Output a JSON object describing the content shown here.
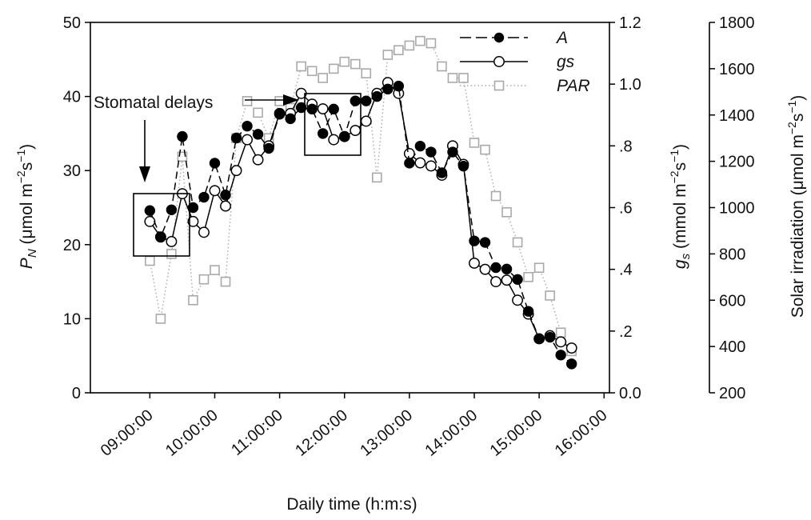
{
  "chart_data": {
    "type": "line",
    "xlabel": "Daily time (h:m:s)",
    "x_ticks": [
      "09:00:00",
      "10:00:00",
      "11:00:00",
      "12:00:00",
      "13:00:00",
      "14:00:00",
      "15:00:00",
      "16:00:00"
    ],
    "xlim": [
      "08:05:00",
      "16:05:00"
    ],
    "axes": {
      "left": {
        "label_main": "P",
        "label_sub": "N",
        "label_rest": " (μmol m",
        "label_sup1": "−2",
        "label_mid": "s",
        "label_sup2": "−1",
        "label_end": ")",
        "ylim": [
          0,
          50
        ],
        "ticks": [
          "0",
          "10",
          "20",
          "30",
          "40",
          "50"
        ]
      },
      "right1": {
        "label_main": "g",
        "label_sub": "s",
        "label_rest": " (mmol m",
        "label_sup1": "−2",
        "label_mid": "s",
        "label_sup2": "−1",
        "label_end": ")",
        "ylim": [
          0.0,
          1.2
        ],
        "ticks": [
          "0.0",
          ".2",
          ".4",
          ".6",
          ".8",
          "1.0",
          "1.2"
        ]
      },
      "right2": {
        "label_main": "Solar irradiation (μmol m",
        "label_sup1": "−2",
        "label_mid": "s",
        "label_sup2": "−1",
        "label_end": ")",
        "ylim": [
          200,
          1800
        ],
        "ticks": [
          "200",
          "400",
          "600",
          "800",
          "1000",
          "1200",
          "1400",
          "1600",
          "1800"
        ]
      }
    },
    "legend": {
      "position": "top-right",
      "entries": [
        "A",
        "gs",
        "PAR"
      ]
    },
    "annotation": {
      "text": "Stomatal delays"
    },
    "series": [
      {
        "name": "A",
        "axis": "left",
        "marker": "filled-circle",
        "line": "dashed",
        "color": "#000000",
        "points": [
          [
            "09:00",
            24.6
          ],
          [
            "09:10",
            21.0
          ],
          [
            "09:20",
            24.7
          ],
          [
            "09:30",
            34.6
          ],
          [
            "09:40",
            25.0
          ],
          [
            "09:50",
            26.4
          ],
          [
            "10:00",
            31.0
          ],
          [
            "10:10",
            26.7
          ],
          [
            "10:20",
            34.4
          ],
          [
            "10:30",
            36.0
          ],
          [
            "10:40",
            34.9
          ],
          [
            "10:50",
            33.0
          ],
          [
            "11:00",
            37.6
          ],
          [
            "11:10",
            37.0
          ],
          [
            "11:20",
            38.5
          ],
          [
            "11:30",
            38.3
          ],
          [
            "11:40",
            35.0
          ],
          [
            "11:50",
            38.3
          ],
          [
            "12:00",
            34.6
          ],
          [
            "12:10",
            39.4
          ],
          [
            "12:20",
            39.4
          ],
          [
            "12:30",
            40.0
          ],
          [
            "12:40",
            41.0
          ],
          [
            "12:50",
            41.4
          ],
          [
            "13:00",
            31.0
          ],
          [
            "13:10",
            33.3
          ],
          [
            "13:20",
            32.5
          ],
          [
            "13:30",
            29.7
          ],
          [
            "13:40",
            32.5
          ],
          [
            "13:50",
            30.6
          ],
          [
            "14:00",
            20.5
          ],
          [
            "14:10",
            20.3
          ],
          [
            "14:20",
            16.9
          ],
          [
            "14:30",
            16.7
          ],
          [
            "14:40",
            15.3
          ],
          [
            "14:50",
            11.0
          ],
          [
            "15:00",
            7.3
          ],
          [
            "15:10",
            7.5
          ],
          [
            "15:20",
            5.1
          ],
          [
            "15:30",
            3.9
          ]
        ]
      },
      {
        "name": "gs",
        "axis": "right1",
        "marker": "open-circle",
        "line": "solid",
        "color": "#000000",
        "points": [
          [
            "09:00",
            0.555
          ],
          [
            "09:10",
            0.505
          ],
          [
            "09:20",
            0.49
          ],
          [
            "09:30",
            0.645
          ],
          [
            "09:40",
            0.555
          ],
          [
            "09:50",
            0.52
          ],
          [
            "10:00",
            0.655
          ],
          [
            "10:10",
            0.605
          ],
          [
            "10:20",
            0.72
          ],
          [
            "10:30",
            0.82
          ],
          [
            "10:40",
            0.755
          ],
          [
            "10:50",
            0.8
          ],
          [
            "11:00",
            0.905
          ],
          [
            "11:10",
            0.905
          ],
          [
            "11:20",
            0.97
          ],
          [
            "11:30",
            0.935
          ],
          [
            "11:40",
            0.92
          ],
          [
            "11:50",
            0.82
          ],
          [
            "12:00",
            0.83
          ],
          [
            "12:10",
            0.85
          ],
          [
            "12:20",
            0.88
          ],
          [
            "12:30",
            0.97
          ],
          [
            "12:40",
            1.005
          ],
          [
            "12:50",
            0.97
          ],
          [
            "13:00",
            0.775
          ],
          [
            "13:10",
            0.745
          ],
          [
            "13:20",
            0.735
          ],
          [
            "13:30",
            0.705
          ],
          [
            "13:40",
            0.8
          ],
          [
            "13:50",
            0.74
          ],
          [
            "14:00",
            0.42
          ],
          [
            "14:10",
            0.4
          ],
          [
            "14:20",
            0.36
          ],
          [
            "14:30",
            0.365
          ],
          [
            "14:40",
            0.3
          ],
          [
            "14:50",
            0.255
          ],
          [
            "15:00",
            0.175
          ],
          [
            "15:10",
            0.185
          ],
          [
            "15:20",
            0.165
          ],
          [
            "15:30",
            0.145
          ]
        ]
      },
      {
        "name": "PAR",
        "axis": "right2",
        "marker": "open-square",
        "line": "dotted",
        "color": "#a9a9a9",
        "points": [
          [
            "09:00",
            770
          ],
          [
            "09:10",
            520
          ],
          [
            "09:20",
            800
          ],
          [
            "09:30",
            1220
          ],
          [
            "09:40",
            600
          ],
          [
            "09:50",
            690
          ],
          [
            "10:00",
            730
          ],
          [
            "10:10",
            680
          ],
          [
            "10:20",
            1300
          ],
          [
            "10:30",
            1460
          ],
          [
            "10:40",
            1410
          ],
          [
            "10:50",
            1300
          ],
          [
            "11:00",
            1460
          ],
          [
            "11:10",
            1430
          ],
          [
            "11:20",
            1610
          ],
          [
            "11:30",
            1590
          ],
          [
            "11:40",
            1560
          ],
          [
            "11:50",
            1600
          ],
          [
            "12:00",
            1630
          ],
          [
            "12:10",
            1620
          ],
          [
            "12:20",
            1580
          ],
          [
            "12:30",
            1130
          ],
          [
            "12:40",
            1660
          ],
          [
            "12:50",
            1680
          ],
          [
            "13:00",
            1700
          ],
          [
            "13:10",
            1720
          ],
          [
            "13:20",
            1710
          ],
          [
            "13:30",
            1610
          ],
          [
            "13:40",
            1560
          ],
          [
            "13:50",
            1560
          ],
          [
            "14:00",
            1280
          ],
          [
            "14:10",
            1250
          ],
          [
            "14:20",
            1050
          ],
          [
            "14:30",
            980
          ],
          [
            "14:40",
            850
          ],
          [
            "14:50",
            700
          ],
          [
            "15:00",
            740
          ],
          [
            "15:10",
            620
          ],
          [
            "15:20",
            460
          ],
          [
            "15:30",
            380
          ]
        ]
      }
    ]
  }
}
